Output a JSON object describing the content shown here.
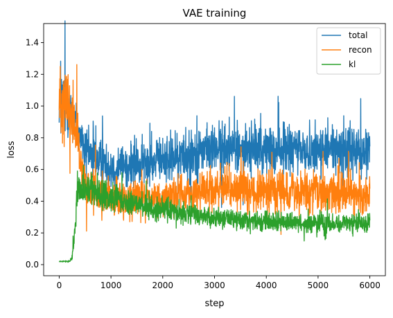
{
  "chart_data": {
    "type": "line",
    "title": "VAE training",
    "xlabel": "step",
    "ylabel": "loss",
    "xlim": [
      -300,
      6300
    ],
    "ylim": [
      -0.07,
      1.52
    ],
    "x_ticks": [
      0,
      1000,
      2000,
      3000,
      4000,
      5000,
      6000
    ],
    "x_tick_labels": [
      "0",
      "1000",
      "2000",
      "3000",
      "4000",
      "5000",
      "6000"
    ],
    "y_ticks": [
      0.0,
      0.2,
      0.4,
      0.6,
      0.8,
      1.0,
      1.2,
      1.4
    ],
    "y_tick_labels": [
      "0.0",
      "0.2",
      "0.4",
      "0.6",
      "0.8",
      "1.0",
      "1.2",
      "1.4"
    ],
    "legend_position": "top-right",
    "grid": false,
    "series": [
      {
        "name": "total",
        "color": "#1f77b4",
        "x": [
          0,
          100,
          200,
          300,
          400,
          500,
          600,
          800,
          1000,
          1200,
          1500,
          2000,
          2500,
          3000,
          3500,
          4000,
          4500,
          5000,
          5500,
          6000
        ],
        "y": [
          1.05,
          1.05,
          0.98,
          0.92,
          0.82,
          0.72,
          0.7,
          0.65,
          0.62,
          0.62,
          0.63,
          0.66,
          0.7,
          0.73,
          0.73,
          0.72,
          0.72,
          0.72,
          0.72,
          0.72
        ],
        "noise": [
          0.12,
          0.14,
          0.12,
          0.12,
          0.1,
          0.1,
          0.1,
          0.1,
          0.1,
          0.1,
          0.1,
          0.1,
          0.11,
          0.11,
          0.11,
          0.11,
          0.11,
          0.11,
          0.11,
          0.11
        ]
      },
      {
        "name": "recon",
        "color": "#ff7f0e",
        "x": [
          0,
          100,
          200,
          300,
          400,
          500,
          600,
          800,
          1000,
          1200,
          1500,
          2000,
          2500,
          3000,
          3500,
          4000,
          4500,
          5000,
          5500,
          6000
        ],
        "y": [
          1.05,
          1.05,
          0.98,
          0.9,
          0.65,
          0.5,
          0.45,
          0.42,
          0.42,
          0.42,
          0.42,
          0.43,
          0.45,
          0.47,
          0.47,
          0.46,
          0.46,
          0.45,
          0.45,
          0.45
        ],
        "noise": [
          0.15,
          0.18,
          0.15,
          0.15,
          0.1,
          0.09,
          0.09,
          0.08,
          0.08,
          0.08,
          0.08,
          0.08,
          0.08,
          0.09,
          0.09,
          0.09,
          0.09,
          0.09,
          0.09,
          0.09
        ]
      },
      {
        "name": "kl",
        "color": "#2ca02c",
        "x": [
          0,
          100,
          200,
          250,
          300,
          350,
          400,
          500,
          600,
          800,
          1000,
          1500,
          2000,
          2500,
          3000,
          3500,
          4000,
          4500,
          5000,
          5500,
          6000
        ],
        "y": [
          0.02,
          0.02,
          0.02,
          0.05,
          0.2,
          0.45,
          0.5,
          0.48,
          0.47,
          0.45,
          0.42,
          0.38,
          0.34,
          0.32,
          0.3,
          0.28,
          0.27,
          0.26,
          0.26,
          0.26,
          0.26
        ],
        "noise": [
          0.002,
          0.003,
          0.005,
          0.02,
          0.05,
          0.08,
          0.08,
          0.08,
          0.08,
          0.07,
          0.06,
          0.05,
          0.05,
          0.05,
          0.045,
          0.045,
          0.045,
          0.045,
          0.045,
          0.045,
          0.045
        ]
      }
    ]
  }
}
